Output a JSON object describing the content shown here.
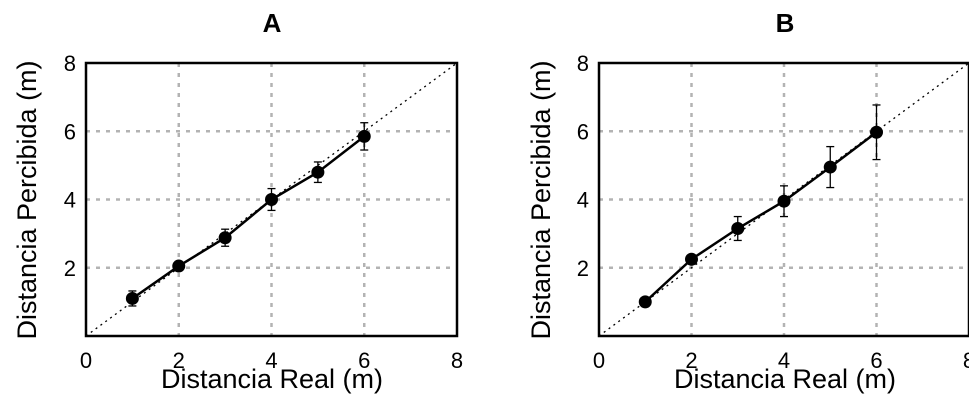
{
  "chart_data": [
    {
      "panel": "A",
      "type": "line",
      "title": "A",
      "xlabel": "Distancia Real (m)",
      "ylabel": "Distancia Percibida (m)",
      "xlim": [
        0,
        8
      ],
      "ylim": [
        0,
        8
      ],
      "xticks": [
        "0",
        "2",
        "4",
        "6",
        "8"
      ],
      "yticks": [
        "2",
        "4",
        "6",
        "8"
      ],
      "grid": true,
      "reference_line": "identity (y = x), dotted",
      "series": [
        {
          "x": [
            1,
            2,
            3,
            4,
            5,
            6
          ],
          "y": [
            1.1,
            2.05,
            2.88,
            4.0,
            4.8,
            5.85
          ],
          "error": [
            0.22,
            0.1,
            0.25,
            0.32,
            0.3,
            0.4
          ]
        }
      ]
    },
    {
      "panel": "B",
      "type": "line",
      "title": "B",
      "xlabel": "Distancia Real (m)",
      "ylabel": "Distancia Percibida (m)",
      "xlim": [
        0,
        8
      ],
      "ylim": [
        0,
        8
      ],
      "xticks": [
        "0",
        "2",
        "4",
        "6",
        "8"
      ],
      "yticks": [
        "2",
        "4",
        "6",
        "8"
      ],
      "grid": true,
      "reference_line": "identity (y = x), dotted",
      "series": [
        {
          "x": [
            1,
            2,
            3,
            4,
            5,
            6
          ],
          "y": [
            1.0,
            2.25,
            3.15,
            3.95,
            4.95,
            5.97
          ],
          "error": [
            0.0,
            0.12,
            0.35,
            0.45,
            0.6,
            0.8
          ]
        }
      ]
    }
  ],
  "colors": {
    "marker": "#000000",
    "line": "#000000",
    "grid": "#b3b3b3",
    "frame": "#000000"
  }
}
